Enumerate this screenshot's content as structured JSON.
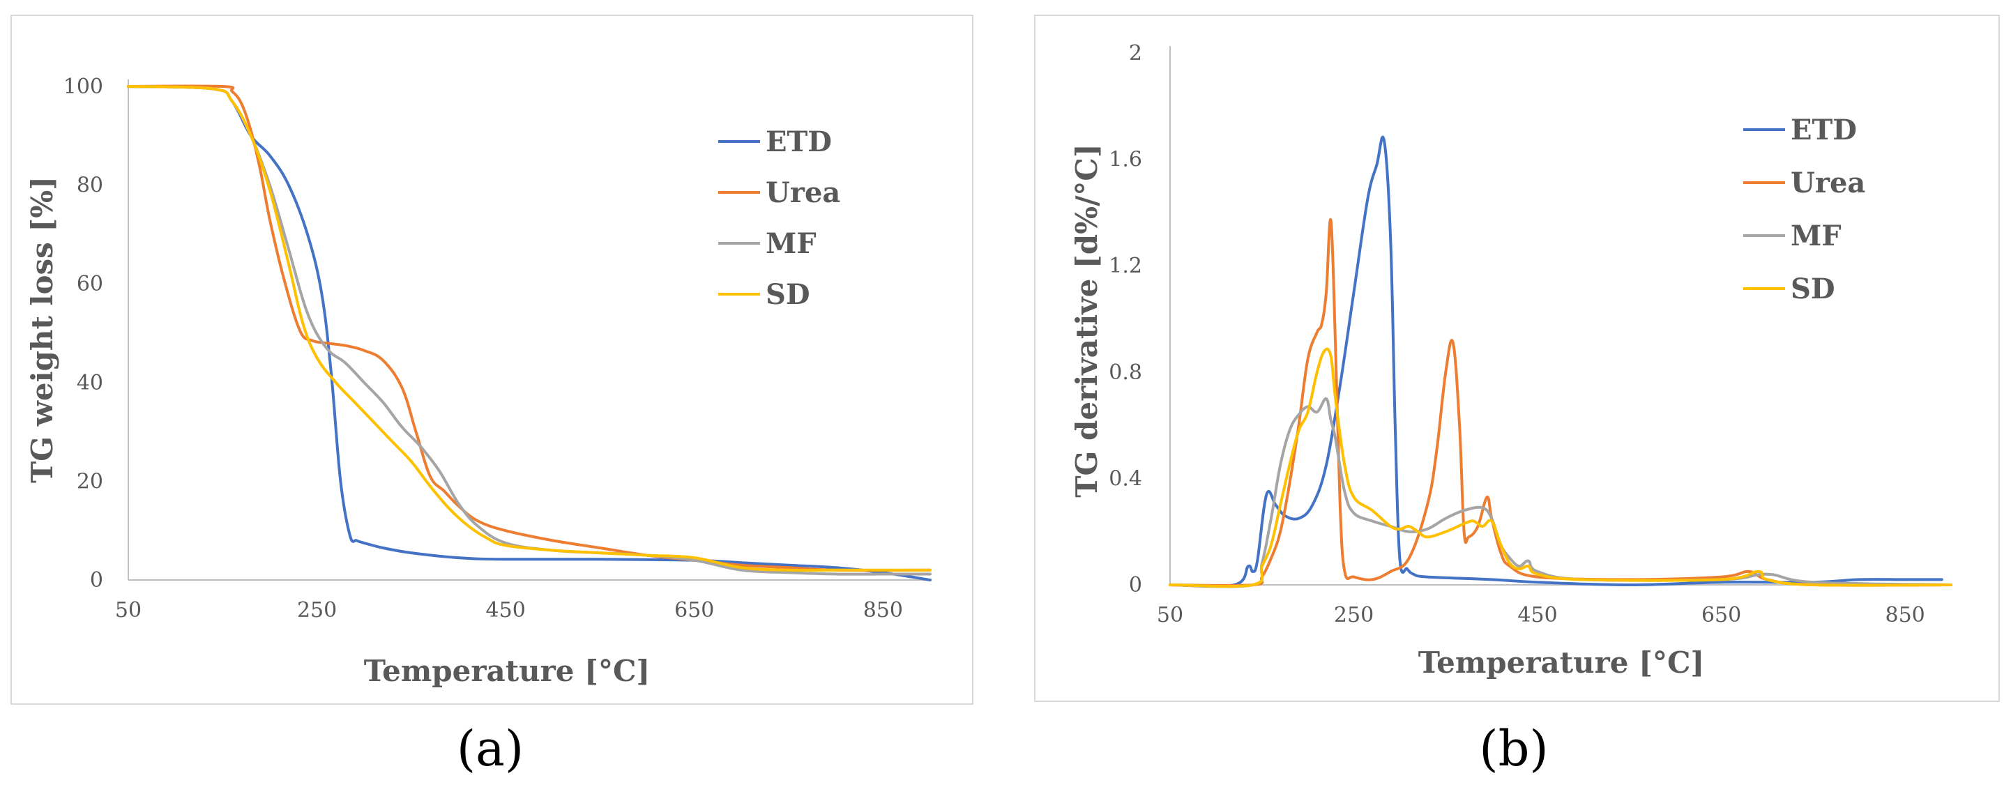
{
  "colors": {
    "ETD": "#4472C4",
    "Urea": "#ED7D31",
    "MF": "#A5A5A5",
    "SD": "#FFC000",
    "axis": "#BFBFBF",
    "text": "#595959",
    "frame": "#D9D9D9"
  },
  "chart_data": [
    {
      "id": "a",
      "type": "line",
      "caption": "(a)",
      "xlabel": "Temperature [°C]",
      "ylabel": "TG weight loss [%]",
      "xlim": [
        50,
        900
      ],
      "ylim": [
        0,
        100
      ],
      "xticks": [
        "50",
        "250",
        "450",
        "650",
        "850"
      ],
      "yticks": [
        "0",
        "20",
        "40",
        "60",
        "80",
        "100"
      ],
      "xtick_values": [
        50,
        250,
        450,
        650,
        850
      ],
      "ytick_values": [
        0,
        20,
        40,
        60,
        80,
        100
      ],
      "legend": [
        "ETD",
        "Urea",
        "MF",
        "SD"
      ],
      "series": [
        {
          "name": "ETD",
          "x": [
            50,
            140,
            160,
            180,
            200,
            220,
            240,
            255,
            265,
            275,
            285,
            292,
            300,
            320,
            350,
            400,
            450,
            550,
            650,
            700,
            750,
            800,
            850,
            900
          ],
          "y": [
            100,
            99.5,
            97,
            90,
            86,
            80,
            70,
            58,
            42,
            20,
            9,
            8,
            7.5,
            6.5,
            5.5,
            4.5,
            4.2,
            4.2,
            4,
            3.5,
            3,
            2.5,
            1.5,
            0
          ]
        },
        {
          "name": "Urea",
          "x": [
            50,
            150,
            160,
            170,
            180,
            190,
            200,
            215,
            232,
            245,
            260,
            280,
            300,
            320,
            340,
            355,
            370,
            385,
            400,
            420,
            450,
            500,
            550,
            600,
            650,
            700,
            750,
            800,
            900
          ],
          "y": [
            100,
            100,
            99,
            96.5,
            91,
            83,
            73,
            61,
            50.5,
            48.5,
            48,
            47.5,
            46.5,
            44.5,
            39,
            30,
            21,
            18,
            15,
            12,
            10,
            8,
            6.5,
            5,
            4,
            3,
            2.5,
            2,
            2
          ]
        },
        {
          "name": "MF",
          "x": [
            50,
            140,
            160,
            180,
            200,
            220,
            240,
            260,
            280,
            300,
            320,
            340,
            360,
            380,
            400,
            420,
            450,
            500,
            550,
            600,
            650,
            700,
            750,
            800,
            850,
            900
          ],
          "y": [
            100,
            99.5,
            97,
            90,
            80,
            67,
            54,
            47,
            44,
            40,
            36,
            31,
            27,
            22,
            15.5,
            11,
            7.5,
            6,
            5.5,
            5,
            4,
            2,
            1.5,
            1.2,
            1.2,
            1.2
          ]
        },
        {
          "name": "SD",
          "x": [
            50,
            140,
            160,
            180,
            200,
            220,
            235,
            250,
            270,
            290,
            310,
            330,
            350,
            370,
            390,
            410,
            430,
            450,
            500,
            550,
            600,
            650,
            700,
            750,
            800,
            850,
            900
          ],
          "y": [
            100,
            99.5,
            97,
            90,
            79,
            64,
            52,
            45,
            40,
            36,
            32,
            28,
            24,
            19,
            14.5,
            11,
            8.5,
            7,
            6,
            5.5,
            5,
            4.5,
            2.5,
            2,
            2,
            2,
            2
          ]
        }
      ]
    },
    {
      "id": "b",
      "type": "line",
      "caption": "(b)",
      "xlabel": "Temperature [°C]",
      "ylabel": "TG derivative [d%/°C]",
      "xlim": [
        50,
        900
      ],
      "ylim": [
        0,
        2
      ],
      "xticks": [
        "50",
        "250",
        "450",
        "650",
        "850"
      ],
      "yticks": [
        "0",
        "0.4",
        "0.8",
        "1.2",
        "1.6",
        "2"
      ],
      "xtick_values": [
        50,
        250,
        450,
        650,
        850
      ],
      "ytick_values": [
        0,
        0.4,
        0.8,
        1.2,
        1.6,
        2
      ],
      "legend": [
        "ETD",
        "Urea",
        "MF",
        "SD"
      ],
      "series": [
        {
          "name": "ETD",
          "x": [
            50,
            120,
            135,
            140,
            145,
            155,
            165,
            175,
            190,
            205,
            220,
            235,
            250,
            265,
            275,
            283,
            290,
            295,
            300,
            308,
            315,
            330,
            400,
            450,
            550,
            650,
            750,
            800,
            850,
            890
          ],
          "y": [
            0,
            0,
            0.07,
            0.05,
            0.09,
            0.34,
            0.3,
            0.26,
            0.25,
            0.3,
            0.45,
            0.75,
            1.1,
            1.45,
            1.58,
            1.67,
            1.3,
            0.6,
            0.1,
            0.06,
            0.04,
            0.03,
            0.02,
            0.01,
            0,
            0.01,
            0.01,
            0.02,
            0.02,
            0.02
          ]
        },
        {
          "name": "Urea",
          "x": [
            50,
            140,
            150,
            160,
            170,
            180,
            190,
            200,
            210,
            215,
            220,
            225,
            230,
            235,
            240,
            250,
            270,
            290,
            310,
            330,
            340,
            350,
            358,
            365,
            370,
            375,
            385,
            395,
            400,
            410,
            420,
            450,
            550,
            650,
            680,
            700,
            750,
            900
          ],
          "y": [
            0,
            0,
            0.03,
            0.1,
            0.2,
            0.38,
            0.6,
            0.85,
            0.95,
            0.98,
            1.1,
            1.37,
            0.9,
            0.3,
            0.05,
            0.03,
            0.02,
            0.05,
            0.1,
            0.3,
            0.5,
            0.8,
            0.91,
            0.6,
            0.2,
            0.18,
            0.22,
            0.33,
            0.25,
            0.12,
            0.07,
            0.03,
            0.02,
            0.03,
            0.05,
            0.02,
            0,
            0
          ]
        },
        {
          "name": "MF",
          "x": [
            50,
            140,
            150,
            160,
            170,
            180,
            190,
            200,
            210,
            220,
            225,
            230,
            240,
            250,
            270,
            290,
            310,
            330,
            350,
            370,
            390,
            400,
            410,
            420,
            430,
            440,
            450,
            500,
            650,
            700,
            750,
            900
          ],
          "y": [
            0,
            0,
            0.08,
            0.25,
            0.45,
            0.58,
            0.64,
            0.67,
            0.65,
            0.7,
            0.62,
            0.55,
            0.35,
            0.27,
            0.24,
            0.22,
            0.2,
            0.21,
            0.25,
            0.28,
            0.29,
            0.25,
            0.15,
            0.1,
            0.07,
            0.09,
            0.05,
            0.02,
            0.02,
            0.04,
            0.01,
            0
          ]
        },
        {
          "name": "SD",
          "x": [
            50,
            140,
            150,
            160,
            170,
            180,
            190,
            200,
            210,
            218,
            225,
            230,
            240,
            250,
            270,
            290,
            300,
            310,
            320,
            330,
            350,
            370,
            380,
            390,
            400,
            410,
            420,
            430,
            440,
            450,
            500,
            650,
            690,
            700,
            750,
            900
          ],
          "y": [
            0,
            0,
            0.07,
            0.15,
            0.3,
            0.45,
            0.58,
            0.65,
            0.8,
            0.88,
            0.86,
            0.7,
            0.45,
            0.33,
            0.28,
            0.22,
            0.21,
            0.22,
            0.2,
            0.18,
            0.2,
            0.23,
            0.24,
            0.22,
            0.24,
            0.15,
            0.08,
            0.06,
            0.07,
            0.04,
            0.02,
            0.02,
            0.05,
            0.02,
            0,
            0
          ]
        }
      ]
    }
  ]
}
